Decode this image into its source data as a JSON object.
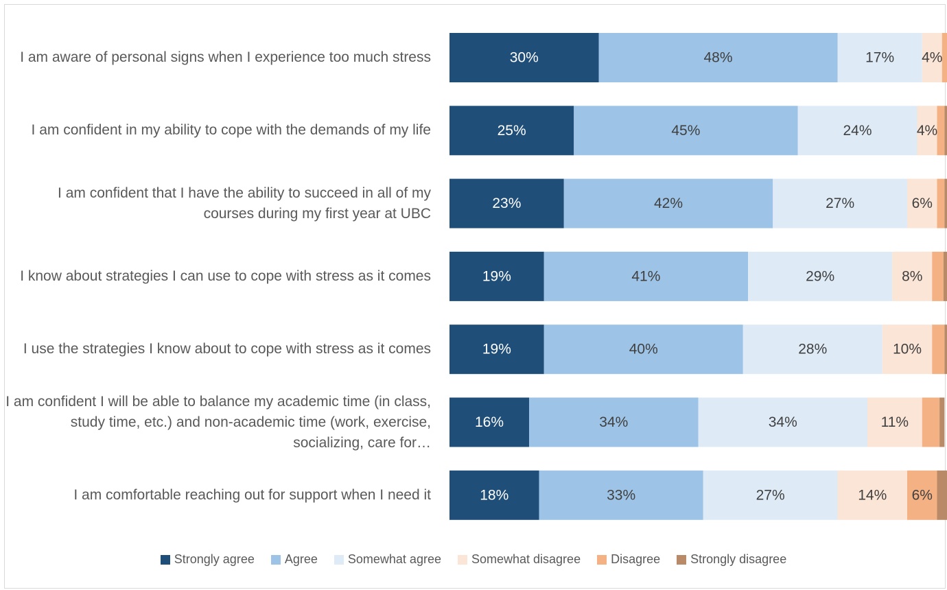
{
  "chart_data": {
    "type": "stacked-bar-horizontal",
    "categories": [
      "I am aware of personal signs when I experience too much stress",
      "I am confident in my ability to cope with the demands of my life",
      "I am confident that I have the ability to succeed in all of my courses during my first year at UBC",
      "I know about strategies I can use to cope with stress as it comes",
      "I use the strategies I know about to cope with stress as it comes",
      "I am confident I will be able to balance my academic time (in class, study time, etc.) and non-academic time (work, exercise, socializing, care for…",
      "I am comfortable reaching out for support when I need it"
    ],
    "xlim": [
      0,
      100
    ],
    "series": [
      {
        "name": "Strongly agree",
        "color": "#1f4e79",
        "values": [
          30,
          25,
          23,
          19,
          19,
          16,
          18
        ],
        "value_labels": [
          "30%",
          "25%",
          "23%",
          "19%",
          "19%",
          "16%",
          "18%"
        ]
      },
      {
        "name": "Agree",
        "color": "#9dc3e6",
        "values": [
          48,
          45,
          42,
          41,
          40,
          34,
          33
        ],
        "value_labels": [
          "48%",
          "45%",
          "42%",
          "41%",
          "40%",
          "34%",
          "33%"
        ]
      },
      {
        "name": "Somewhat agree",
        "color": "#deebf7",
        "values": [
          17,
          24,
          27,
          29,
          28,
          34,
          27
        ],
        "value_labels": [
          "17%",
          "24%",
          "27%",
          "29%",
          "28%",
          "34%",
          "27%"
        ]
      },
      {
        "name": "Somewhat disagree",
        "color": "#fbe5d6",
        "values": [
          4,
          4,
          6,
          8,
          10,
          11,
          14
        ],
        "value_labels": [
          "4%",
          "4%",
          "6%",
          "8%",
          "10%",
          "11%",
          "14%"
        ]
      },
      {
        "name": "Disagree",
        "color": "#f4b183",
        "values": [
          1.5,
          1.5,
          1.5,
          2.3,
          2.5,
          3.5,
          6
        ],
        "value_labels": [
          null,
          null,
          null,
          null,
          null,
          null,
          "6%"
        ]
      },
      {
        "name": "Strongly disagree",
        "color": "#b88a68",
        "values": [
          0.5,
          0.5,
          0.5,
          0.7,
          0.5,
          1,
          2
        ],
        "value_labels": [
          null,
          null,
          null,
          null,
          null,
          null,
          null
        ]
      }
    ]
  }
}
